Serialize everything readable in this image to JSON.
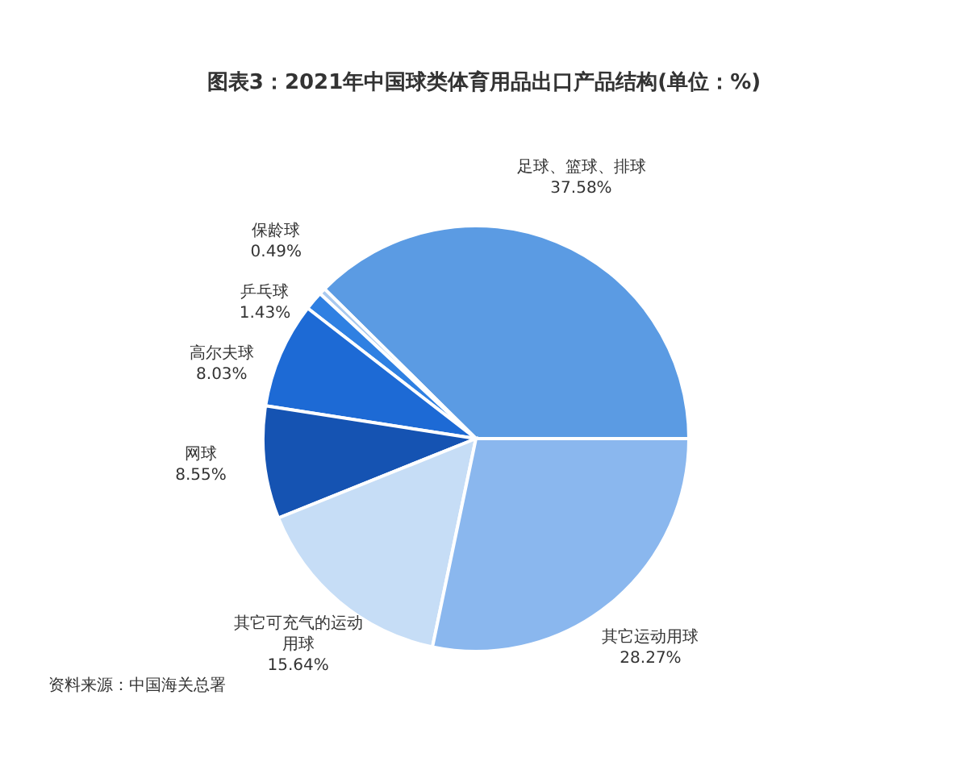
{
  "chart_data": {
    "type": "pie",
    "title": "图表3：2021年中国球类体育用品出口产品结构(单位：%)",
    "categories": [
      "足球、篮球、排球",
      "保龄球",
      "乒乓球",
      "高尔夫球",
      "网球",
      "其它可充气的运动用球",
      "其它运动用球"
    ],
    "values": [
      37.58,
      0.49,
      1.43,
      8.03,
      8.55,
      15.64,
      28.27
    ],
    "colors": [
      "#5b9be3",
      "#a9c9ef",
      "#2f80e2",
      "#1d6ad5",
      "#1553b2",
      "#c6ddf6",
      "#8ab7ee"
    ],
    "value_labels": [
      "37.58%",
      "0.49%",
      "1.43%",
      "8.03%",
      "8.55%",
      "15.64%",
      "28.27%"
    ],
    "annotations": [
      "资料来源：中国海关总署"
    ]
  }
}
